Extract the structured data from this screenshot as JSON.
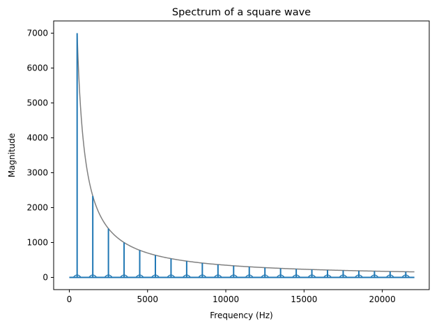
{
  "chart_data": {
    "type": "line",
    "title": "Spectrum of a square wave",
    "xlabel": "Frequency (Hz)",
    "ylabel": "Magnitude",
    "xlim": [
      -1000,
      23000
    ],
    "ylim": [
      -350,
      7350
    ],
    "xticks": [
      0,
      5000,
      10000,
      15000,
      20000
    ],
    "yticks": [
      0,
      1000,
      2000,
      3000,
      4000,
      5000,
      6000,
      7000
    ],
    "grid": false,
    "series": [
      {
        "role": "spectrum",
        "color": "#1f77b4",
        "peaks": {
          "x": [
            500,
            1500,
            2500,
            3500,
            4500,
            5500,
            6500,
            7500,
            8500,
            9500,
            10500,
            11500,
            12500,
            13500,
            14500,
            15500,
            16500,
            17500,
            18500,
            19500,
            20500,
            21500
          ],
          "y": [
            7000,
            2333,
            1400,
            1000,
            778,
            636,
            538,
            467,
            412,
            368,
            333,
            304,
            280,
            259,
            241,
            226,
            212,
            200,
            189,
            179,
            171,
            163
          ]
        },
        "baseline": {
          "x": [
            0,
            22050
          ],
          "y": [
            0,
            0
          ]
        }
      },
      {
        "role": "envelope",
        "color": "#808080",
        "formula_k": 3500000,
        "x_start": 500,
        "x_end": 22050
      }
    ]
  }
}
